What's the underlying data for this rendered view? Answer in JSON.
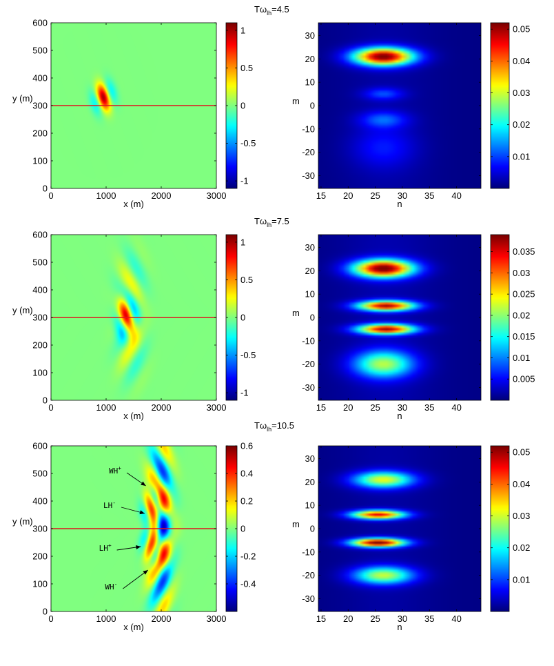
{
  "chart_data": [
    {
      "type": "heatmap",
      "name": "field-1",
      "field": "wave field snapshot",
      "xlabel": "x (m)",
      "ylabel": "y (m)",
      "xlim": [
        0,
        3000
      ],
      "ylim": [
        0,
        600
      ],
      "xticks": [
        "0",
        "1000",
        "2000",
        "3000"
      ],
      "yticks": [
        "0",
        "100",
        "200",
        "300",
        "400",
        "500",
        "600"
      ],
      "boundary_y": 300,
      "colorbar": {
        "range": [
          -1.1,
          1.1
        ],
        "ticks": [
          "-1",
          "-0.5",
          "0",
          "0.5",
          "1"
        ],
        "tick_values": [
          -1,
          -0.5,
          0,
          0.5,
          1
        ]
      },
      "background_value": 0,
      "packets": [
        {
          "x": 950,
          "y": 330,
          "sx": 120,
          "sy": 35,
          "kx": 0.012,
          "ky": 0.022,
          "amp": 1.0
        }
      ],
      "annotations": []
    },
    {
      "type": "heatmap",
      "name": "spectrum-1",
      "field": "mode spectrum",
      "title": "Tω",
      "title_sub": "lh",
      "title_value": "=4.5",
      "xlabel": "n",
      "ylabel": "m",
      "xlim": [
        14.5,
        44.5
      ],
      "ylim": [
        -35.5,
        35.5
      ],
      "xticks": [
        "15",
        "20",
        "25",
        "30",
        "35",
        "40"
      ],
      "yticks": [
        "-30",
        "-20",
        "-10",
        "0",
        "10",
        "20",
        "30"
      ],
      "colorbar": {
        "range": [
          0,
          0.052
        ],
        "ticks": [
          "0.01",
          "0.02",
          "0.03",
          "0.04",
          "0.05"
        ],
        "tick_values": [
          0.01,
          0.02,
          0.03,
          0.04,
          0.05
        ]
      },
      "blobs": [
        {
          "n": 26.5,
          "m": 21,
          "sn": 3.8,
          "sm": 2.6,
          "amp": 0.052
        },
        {
          "n": 26.5,
          "m": 5,
          "sn": 2.5,
          "sm": 1.8,
          "amp": 0.009
        },
        {
          "n": 26.5,
          "m": -6,
          "sn": 3.0,
          "sm": 2.5,
          "amp": 0.01
        },
        {
          "n": 26.5,
          "m": -18,
          "sn": 4.0,
          "sm": 6.0,
          "amp": 0.006
        }
      ]
    },
    {
      "type": "heatmap",
      "name": "field-2",
      "field": "wave field snapshot",
      "xlabel": "x (m)",
      "ylabel": "y (m)",
      "xlim": [
        0,
        3000
      ],
      "ylim": [
        0,
        600
      ],
      "xticks": [
        "0",
        "1000",
        "2000",
        "3000"
      ],
      "yticks": [
        "0",
        "100",
        "200",
        "300",
        "400",
        "500",
        "600"
      ],
      "boundary_y": 300,
      "colorbar": {
        "range": [
          -1.1,
          1.1
        ],
        "ticks": [
          "-1",
          "-0.5",
          "0",
          "0.5",
          "1"
        ],
        "tick_values": [
          -1,
          -0.5,
          0,
          0.5,
          1
        ]
      },
      "background_value": 0,
      "packets": [
        {
          "x": 1370,
          "y": 305,
          "sx": 120,
          "sy": 50,
          "kx": 0.011,
          "ky": 0.024,
          "amp": 0.95
        },
        {
          "x": 1450,
          "y": 420,
          "sx": 180,
          "sy": 80,
          "kx": 0.01,
          "ky": 0.03,
          "amp": 0.28
        },
        {
          "x": 1450,
          "y": 190,
          "sx": 180,
          "sy": 80,
          "kx": 0.01,
          "ky": -0.03,
          "amp": 0.28
        }
      ],
      "annotations": []
    },
    {
      "type": "heatmap",
      "name": "spectrum-2",
      "field": "mode spectrum",
      "title": "Tω",
      "title_sub": "lh",
      "title_value": "=7.5",
      "xlabel": "n",
      "ylabel": "m",
      "xlim": [
        14.5,
        44.5
      ],
      "ylim": [
        -35.5,
        35.5
      ],
      "xticks": [
        "15",
        "20",
        "25",
        "30",
        "35",
        "40"
      ],
      "yticks": [
        "-30",
        "-20",
        "-10",
        "0",
        "10",
        "20",
        "30"
      ],
      "colorbar": {
        "range": [
          0,
          0.039
        ],
        "ticks": [
          "0.005",
          "0.01",
          "0.015",
          "0.02",
          "0.025",
          "0.03",
          "0.035"
        ],
        "tick_values": [
          0.005,
          0.01,
          0.015,
          0.02,
          0.025,
          0.03,
          0.035
        ]
      },
      "blobs": [
        {
          "n": 26.5,
          "m": 21,
          "sn": 3.8,
          "sm": 2.6,
          "amp": 0.039
        },
        {
          "n": 27,
          "m": 5,
          "sn": 3.6,
          "sm": 1.5,
          "amp": 0.036
        },
        {
          "n": 27,
          "m": -5,
          "sn": 3.6,
          "sm": 1.5,
          "amp": 0.036
        },
        {
          "n": 26.5,
          "m": -20,
          "sn": 3.8,
          "sm": 4.0,
          "amp": 0.02
        }
      ]
    },
    {
      "type": "heatmap",
      "name": "field-3",
      "field": "wave field snapshot",
      "xlabel": "x (m)",
      "ylabel": "y (m)",
      "xlim": [
        0,
        3000
      ],
      "ylim": [
        0,
        600
      ],
      "xticks": [
        "0",
        "1000",
        "2000",
        "3000"
      ],
      "yticks": [
        "0",
        "100",
        "200",
        "300",
        "400",
        "500",
        "600"
      ],
      "boundary_y": 300,
      "colorbar": {
        "range": [
          -0.6,
          0.6
        ],
        "ticks": [
          "-0.4",
          "-0.2",
          "0",
          "0.2",
          "0.4",
          "0.6"
        ],
        "tick_values": [
          -0.4,
          -0.2,
          0,
          0.2,
          0.4,
          0.6
        ]
      },
      "background_value": 0,
      "packets": [
        {
          "x": 1820,
          "y": 380,
          "sx": 110,
          "sy": 45,
          "kx": 0.012,
          "ky": 0.026,
          "amp": 0.6
        },
        {
          "x": 1820,
          "y": 235,
          "sx": 110,
          "sy": 45,
          "kx": 0.012,
          "ky": -0.026,
          "amp": 0.6
        },
        {
          "x": 1980,
          "y": 430,
          "sx": 150,
          "sy": 140,
          "kx": 0.01,
          "ky": 0.032,
          "amp": 0.45
        },
        {
          "x": 1980,
          "y": 185,
          "sx": 150,
          "sy": 140,
          "kx": 0.01,
          "ky": -0.032,
          "amp": 0.45
        }
      ],
      "annotations": [
        {
          "label": "WH",
          "sup": "+",
          "text_x": 1050,
          "text_y": 510,
          "arrow_x": 1720,
          "arrow_y": 455
        },
        {
          "label": "LH",
          "sup": "-",
          "text_x": 950,
          "text_y": 385,
          "arrow_x": 1700,
          "arrow_y": 355
        },
        {
          "label": "LH",
          "sup": "+",
          "text_x": 870,
          "text_y": 230,
          "arrow_x": 1630,
          "arrow_y": 235
        },
        {
          "label": "WH",
          "sup": "-",
          "text_x": 980,
          "text_y": 90,
          "arrow_x": 1760,
          "arrow_y": 150
        }
      ]
    },
    {
      "type": "heatmap",
      "name": "spectrum-3",
      "field": "mode spectrum",
      "title": "Tω",
      "title_sub": "lh",
      "title_value": "=10.5",
      "xlabel": "n",
      "ylabel": "m",
      "xlim": [
        14.5,
        44.5
      ],
      "ylim": [
        -35.5,
        35.5
      ],
      "xticks": [
        "15",
        "20",
        "25",
        "30",
        "35",
        "40"
      ],
      "yticks": [
        "-30",
        "-20",
        "-10",
        "0",
        "10",
        "20",
        "30"
      ],
      "colorbar": {
        "range": [
          0,
          0.052
        ],
        "ticks": [
          "0.01",
          "0.02",
          "0.03",
          "0.04",
          "0.05"
        ],
        "tick_values": [
          0.01,
          0.02,
          0.03,
          0.04,
          0.05
        ]
      },
      "blobs": [
        {
          "n": 26.5,
          "m": 21,
          "sn": 3.8,
          "sm": 2.4,
          "amp": 0.03
        },
        {
          "n": 25.5,
          "m": 6,
          "sn": 3.4,
          "sm": 1.3,
          "amp": 0.045
        },
        {
          "n": 25.5,
          "m": -6,
          "sn": 3.4,
          "sm": 1.3,
          "amp": 0.052
        },
        {
          "n": 26.5,
          "m": -20,
          "sn": 3.8,
          "sm": 2.6,
          "amp": 0.028
        }
      ]
    }
  ]
}
